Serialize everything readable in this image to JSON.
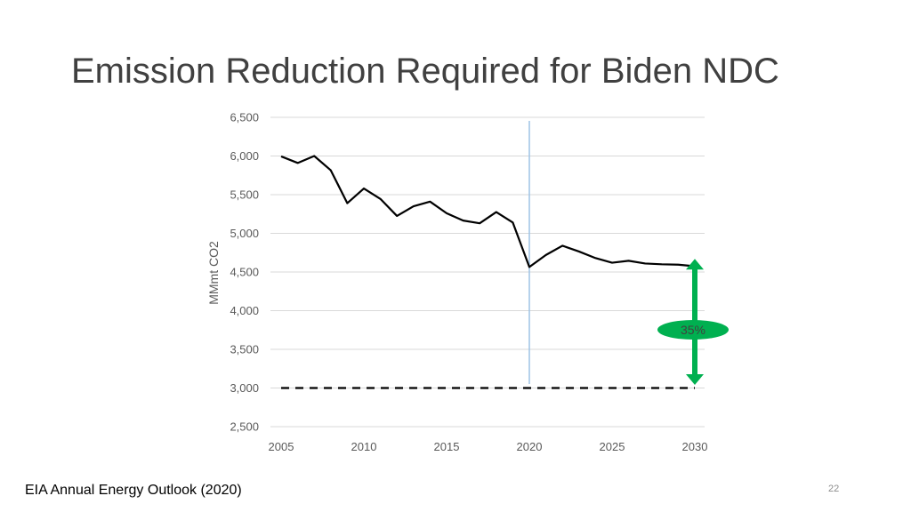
{
  "slide": {
    "title": "Emission Reduction Required for Biden NDC",
    "source": "EIA Annual Energy Outlook (2020)",
    "page_number": "22"
  },
  "chart_data": {
    "type": "line",
    "title": "",
    "xlabel": "",
    "ylabel": "MMmt CO2",
    "xlim": [
      2005,
      2030
    ],
    "ylim": [
      2500,
      6500
    ],
    "x_ticks": [
      "2005",
      "2010",
      "2015",
      "2020",
      "2025",
      "2030"
    ],
    "y_ticks": [
      "2,500",
      "3,000",
      "3,500",
      "4,000",
      "4,500",
      "5,000",
      "5,500",
      "6,000",
      "6,500"
    ],
    "grid": true,
    "series": [
      {
        "x": [
          2005,
          2006,
          2007,
          2008,
          2009,
          2010,
          2011,
          2012,
          2013,
          2014,
          2015,
          2016,
          2017,
          2018,
          2019,
          2020,
          2021,
          2022,
          2023,
          2024,
          2025,
          2026,
          2027,
          2028,
          2029,
          2030
        ],
        "values": [
          5995,
          5910,
          6000,
          5815,
          5390,
          5580,
          5445,
          5225,
          5350,
          5410,
          5260,
          5165,
          5130,
          5275,
          5140,
          4565,
          4720,
          4840,
          4765,
          4680,
          4620,
          4645,
          4610,
          4600,
          4595,
          4575
        ],
        "color": "#000000",
        "style": "solid"
      },
      {
        "x": [
          2005,
          2030
        ],
        "values": [
          3000,
          3000
        ],
        "color": "#000000",
        "style": "dashed"
      }
    ],
    "reference_line": {
      "x": 2020,
      "color": "#9dc3e6"
    },
    "annotation": {
      "label": "35%",
      "x": 2030,
      "from": 4600,
      "to": 3040,
      "color": "#00b050"
    }
  }
}
